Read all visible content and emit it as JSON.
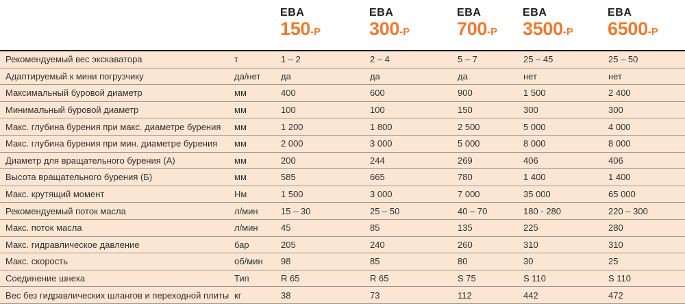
{
  "colors": {
    "accent_orange": "#ef7b2f",
    "header_text": "#1d1d1b",
    "row_background": "#fbe6d3",
    "row_separator": "#9b948e",
    "header_separator": "#1d1d1b",
    "body_text": "#30302e"
  },
  "table": {
    "models": [
      {
        "brand": "EBA",
        "number": "150",
        "suffix": "-P"
      },
      {
        "brand": "EBA",
        "number": "300",
        "suffix": "-P"
      },
      {
        "brand": "EBA",
        "number": "700",
        "suffix": "-P"
      },
      {
        "brand": "EBA",
        "number": "3500",
        "suffix": "-P"
      },
      {
        "brand": "EBA",
        "number": "6500",
        "suffix": "-P"
      }
    ],
    "rows": [
      {
        "label": "Рекомендуемый вес экскаватора",
        "unit": "т",
        "values": [
          "1 – 2",
          "2 – 4",
          "5 – 7",
          "25 – 45",
          "25 – 50"
        ]
      },
      {
        "label": "Адаптируемый к мини погрузчику",
        "unit": "да/нет",
        "values": [
          "да",
          "да",
          "да",
          "нет",
          "нет"
        ]
      },
      {
        "label": "Максимальный буровой диаметр",
        "unit": "мм",
        "values": [
          "400",
          "600",
          "900",
          "1 500",
          "2 400"
        ]
      },
      {
        "label": "Минимальный буровой диаметр",
        "unit": "мм",
        "values": [
          "100",
          "100",
          "150",
          "300",
          "300"
        ]
      },
      {
        "label": "Макс. глубина бурения при макс. диаметре бурения",
        "unit": "мм",
        "values": [
          "1 200",
          "1 800",
          "2 500",
          "5 000",
          "4 000"
        ]
      },
      {
        "label": "Макс. глубина бурения при мин. диаметре бурения",
        "unit": "мм",
        "values": [
          "2 000",
          "3 000",
          "5 000",
          "8 000",
          "8 000"
        ]
      },
      {
        "label": "Диаметр для вращательного бурения (А)",
        "unit": "мм",
        "values": [
          "200",
          "244",
          "269",
          "406",
          "406"
        ]
      },
      {
        "label": "Высота вращательного бурения (Б)",
        "unit": "мм",
        "values": [
          "585",
          "665",
          "780",
          "1 400",
          "1 400"
        ]
      },
      {
        "label": "Макс. крутящий момент",
        "unit": "Нм",
        "values": [
          "1 500",
          "3 000",
          "7 000",
          "35 000",
          "65 000"
        ]
      },
      {
        "label": "Рекомендуемый поток масла",
        "unit": "л/мин",
        "values": [
          "15 – 30",
          "25 – 50",
          "40 – 70",
          "180 - 280",
          "220 – 300"
        ]
      },
      {
        "label": "Макс. поток масла",
        "unit": "л/мин",
        "values": [
          "45",
          "85",
          "135",
          "225",
          "280"
        ]
      },
      {
        "label": "Макс. гидравлическое давление",
        "unit": "бар",
        "values": [
          "205",
          "240",
          "260",
          "310",
          "310"
        ]
      },
      {
        "label": "Макс. скорость",
        "unit": "об/мин",
        "values": [
          "98",
          "85",
          "80",
          "30",
          "25"
        ]
      },
      {
        "label": "Соединение шнека",
        "unit": "Тип",
        "values": [
          "R 65",
          "R 65",
          "S 75",
          "S 110",
          "S 110"
        ]
      },
      {
        "label": "Вес без гидравлических шлангов и переходной плиты",
        "unit": "кг",
        "values": [
          "38",
          "73",
          "112",
          "442",
          "472"
        ]
      }
    ]
  }
}
